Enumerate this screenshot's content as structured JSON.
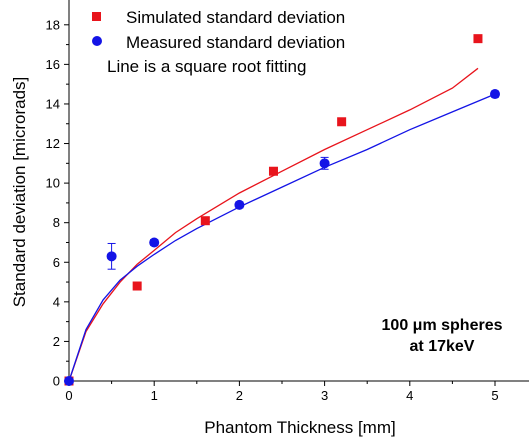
{
  "chart_data": {
    "type": "scatter",
    "xlabel": "Phantom Thickness [mm]",
    "ylabel": "Standard deviation [microrads]",
    "xlim": [
      0,
      6
    ],
    "ylim": [
      0,
      19
    ],
    "x_ticks": [
      "0",
      "1",
      "2",
      "3",
      "4",
      "5"
    ],
    "y_ticks": [
      "0",
      "2",
      "4",
      "6",
      "8",
      "10",
      "12",
      "14",
      "16",
      "18"
    ],
    "grid": false,
    "legend_position": "top-left",
    "series": [
      {
        "name": "Simulated standard deviation",
        "marker": "square",
        "color": "#e8141c",
        "points": [
          [
            0,
            0
          ],
          [
            0.8,
            4.8
          ],
          [
            1.6,
            8.1
          ],
          [
            2.4,
            10.6
          ],
          [
            3.2,
            13.1
          ],
          [
            4.8,
            17.3
          ]
        ]
      },
      {
        "name": "Measured standard deviation",
        "marker": "circle",
        "color": "#1414e6",
        "points": [
          [
            0,
            0
          ],
          [
            0.5,
            6.3
          ],
          [
            1.0,
            7.0
          ],
          [
            2.0,
            8.9
          ],
          [
            3.0,
            11.0
          ],
          [
            5.0,
            14.5
          ]
        ],
        "error": [
          0,
          0.65,
          0.15,
          0.15,
          0.3,
          0.15
        ]
      }
    ],
    "fits": [
      {
        "name": "Simulated fit",
        "color": "#e8141c",
        "points": [
          [
            0,
            0
          ],
          [
            0.2,
            2.5
          ],
          [
            0.4,
            3.9
          ],
          [
            0.6,
            5.0
          ],
          [
            0.8,
            5.9
          ],
          [
            1.0,
            6.6
          ],
          [
            1.25,
            7.5
          ],
          [
            1.5,
            8.2
          ],
          [
            2.0,
            9.5
          ],
          [
            2.5,
            10.6
          ],
          [
            3.0,
            11.7
          ],
          [
            3.5,
            12.7
          ],
          [
            4.0,
            13.7
          ],
          [
            4.5,
            14.8
          ],
          [
            4.8,
            15.8
          ]
        ]
      },
      {
        "name": "Measured fit",
        "color": "#1414e6",
        "points": [
          [
            0,
            0
          ],
          [
            0.2,
            2.6
          ],
          [
            0.4,
            4.1
          ],
          [
            0.6,
            5.1
          ],
          [
            0.8,
            5.8
          ],
          [
            1.0,
            6.4
          ],
          [
            1.25,
            7.1
          ],
          [
            1.5,
            7.7
          ],
          [
            2.0,
            8.8
          ],
          [
            2.5,
            9.8
          ],
          [
            3.0,
            10.8
          ],
          [
            3.5,
            11.7
          ],
          [
            4.0,
            12.7
          ],
          [
            4.5,
            13.6
          ],
          [
            5.0,
            14.5
          ]
        ]
      }
    ],
    "legend": {
      "simulated": "Simulated standard deviation",
      "measured": "Measured standard deviation",
      "note": "Line is a square root fitting"
    },
    "annotation": {
      "line1": "100 μm spheres",
      "line2": "at 17keV"
    }
  }
}
